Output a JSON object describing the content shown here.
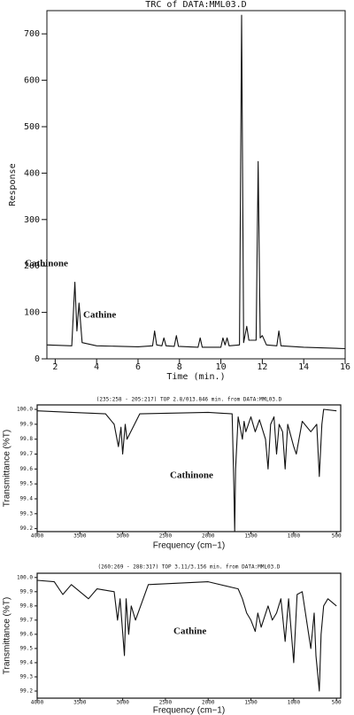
{
  "chart_data": [
    {
      "type": "line",
      "title": "TRC of DATA:MML03.D",
      "xlabel": "Time (min.)",
      "ylabel": "Response",
      "annotations": [
        "Cathinone",
        "Cathine"
      ],
      "xlim": [
        1.6,
        16
      ],
      "ylim": [
        0,
        750
      ],
      "xticks": [
        2,
        4,
        6,
        8,
        10,
        12,
        14,
        16
      ],
      "yticks": [
        0,
        100,
        200,
        300,
        400,
        500,
        600,
        700
      ],
      "series": [
        {
          "color": "#111111",
          "x": [
            1.6,
            2.8,
            2.95,
            3.05,
            3.15,
            3.3,
            4,
            6,
            6.7,
            6.8,
            6.9,
            7.15,
            7.25,
            7.35,
            7.75,
            7.85,
            7.95,
            8.9,
            9.0,
            9.1,
            10.0,
            10.1,
            10.2,
            10.3,
            10.4,
            10.9,
            11.0,
            11.1,
            11.25,
            11.35,
            11.7,
            11.8,
            11.9,
            12.0,
            12.2,
            12.7,
            12.8,
            12.9,
            14,
            16
          ],
          "values": [
            30,
            28,
            165,
            60,
            120,
            35,
            28,
            26,
            28,
            60,
            30,
            28,
            45,
            28,
            27,
            50,
            27,
            25,
            45,
            25,
            25,
            45,
            30,
            45,
            28,
            30,
            740,
            35,
            70,
            40,
            40,
            425,
            45,
            50,
            30,
            28,
            60,
            28,
            25,
            22
          ]
        }
      ]
    },
    {
      "type": "line",
      "title": "(235:258 - 205:217) TOP 2.8/013.846 min. from DATA:MML03.D",
      "xlabel": "Frequency (cm−1)",
      "ylabel": "Transmittance (%T)",
      "annotations": [
        "Cathinone"
      ],
      "xlim": [
        4000,
        450
      ],
      "ylim": [
        99.18,
        100.03
      ],
      "xticks": [
        4000,
        3500,
        3000,
        2500,
        2000,
        1500,
        1000,
        500
      ],
      "yticks": [
        {
          "value": 100,
          "label": "100.0"
        },
        99.9,
        99.8,
        99.7,
        99.6,
        99.5,
        99.4,
        99.3,
        99.2
      ],
      "series": [
        {
          "color": "#111111",
          "x": [
            4000,
            3600,
            3200,
            3100,
            3050,
            3020,
            3000,
            2970,
            2950,
            2800,
            2000,
            1720,
            1700,
            1690,
            1680,
            1650,
            1600,
            1580,
            1560,
            1500,
            1450,
            1400,
            1330,
            1300,
            1270,
            1230,
            1200,
            1170,
            1130,
            1100,
            1070,
            1000,
            970,
            900,
            800,
            730,
            700,
            670,
            650,
            500
          ],
          "values": [
            99.99,
            99.98,
            99.97,
            99.9,
            99.75,
            99.88,
            99.7,
            99.9,
            99.8,
            99.97,
            99.98,
            99.97,
            99.5,
            99.18,
            99.6,
            99.95,
            99.8,
            99.92,
            99.85,
            99.95,
            99.85,
            99.93,
            99.8,
            99.6,
            99.9,
            99.95,
            99.7,
            99.9,
            99.85,
            99.6,
            99.9,
            99.75,
            99.7,
            99.92,
            99.85,
            99.9,
            99.55,
            99.9,
            100.0,
            99.99
          ]
        }
      ]
    },
    {
      "type": "line",
      "title": "(260:269 - 288:317) TOP 3.11/3.156 min. from DATA:MML03.D",
      "xlabel": "Frequency (cm−1)",
      "ylabel": "Transmittance (%T)",
      "annotations": [
        "Cathine"
      ],
      "xlim": [
        4000,
        450
      ],
      "ylim": [
        99.15,
        100.03
      ],
      "xticks": [
        4000,
        3500,
        3000,
        2500,
        2000,
        1500,
        1000,
        500
      ],
      "yticks": [
        {
          "value": 100,
          "label": "100.0"
        },
        99.9,
        99.8,
        99.7,
        99.6,
        99.5,
        99.4,
        99.3,
        99.2
      ],
      "series": [
        {
          "color": "#111111",
          "x": [
            4000,
            3800,
            3700,
            3600,
            3400,
            3300,
            3100,
            3060,
            3030,
            2980,
            2960,
            2930,
            2900,
            2850,
            2700,
            2000,
            1650,
            1600,
            1550,
            1500,
            1450,
            1420,
            1380,
            1300,
            1250,
            1200,
            1150,
            1100,
            1060,
            1000,
            960,
            900,
            800,
            760,
            740,
            700,
            680,
            650,
            600,
            500
          ],
          "values": [
            99.98,
            99.97,
            99.88,
            99.95,
            99.85,
            99.92,
            99.9,
            99.7,
            99.85,
            99.45,
            99.85,
            99.6,
            99.8,
            99.7,
            99.95,
            99.97,
            99.92,
            99.85,
            99.75,
            99.7,
            99.62,
            99.75,
            99.65,
            99.8,
            99.7,
            99.75,
            99.85,
            99.55,
            99.85,
            99.4,
            99.88,
            99.9,
            99.5,
            99.75,
            99.45,
            99.2,
            99.6,
            99.8,
            99.85,
            99.8
          ]
        }
      ]
    }
  ]
}
